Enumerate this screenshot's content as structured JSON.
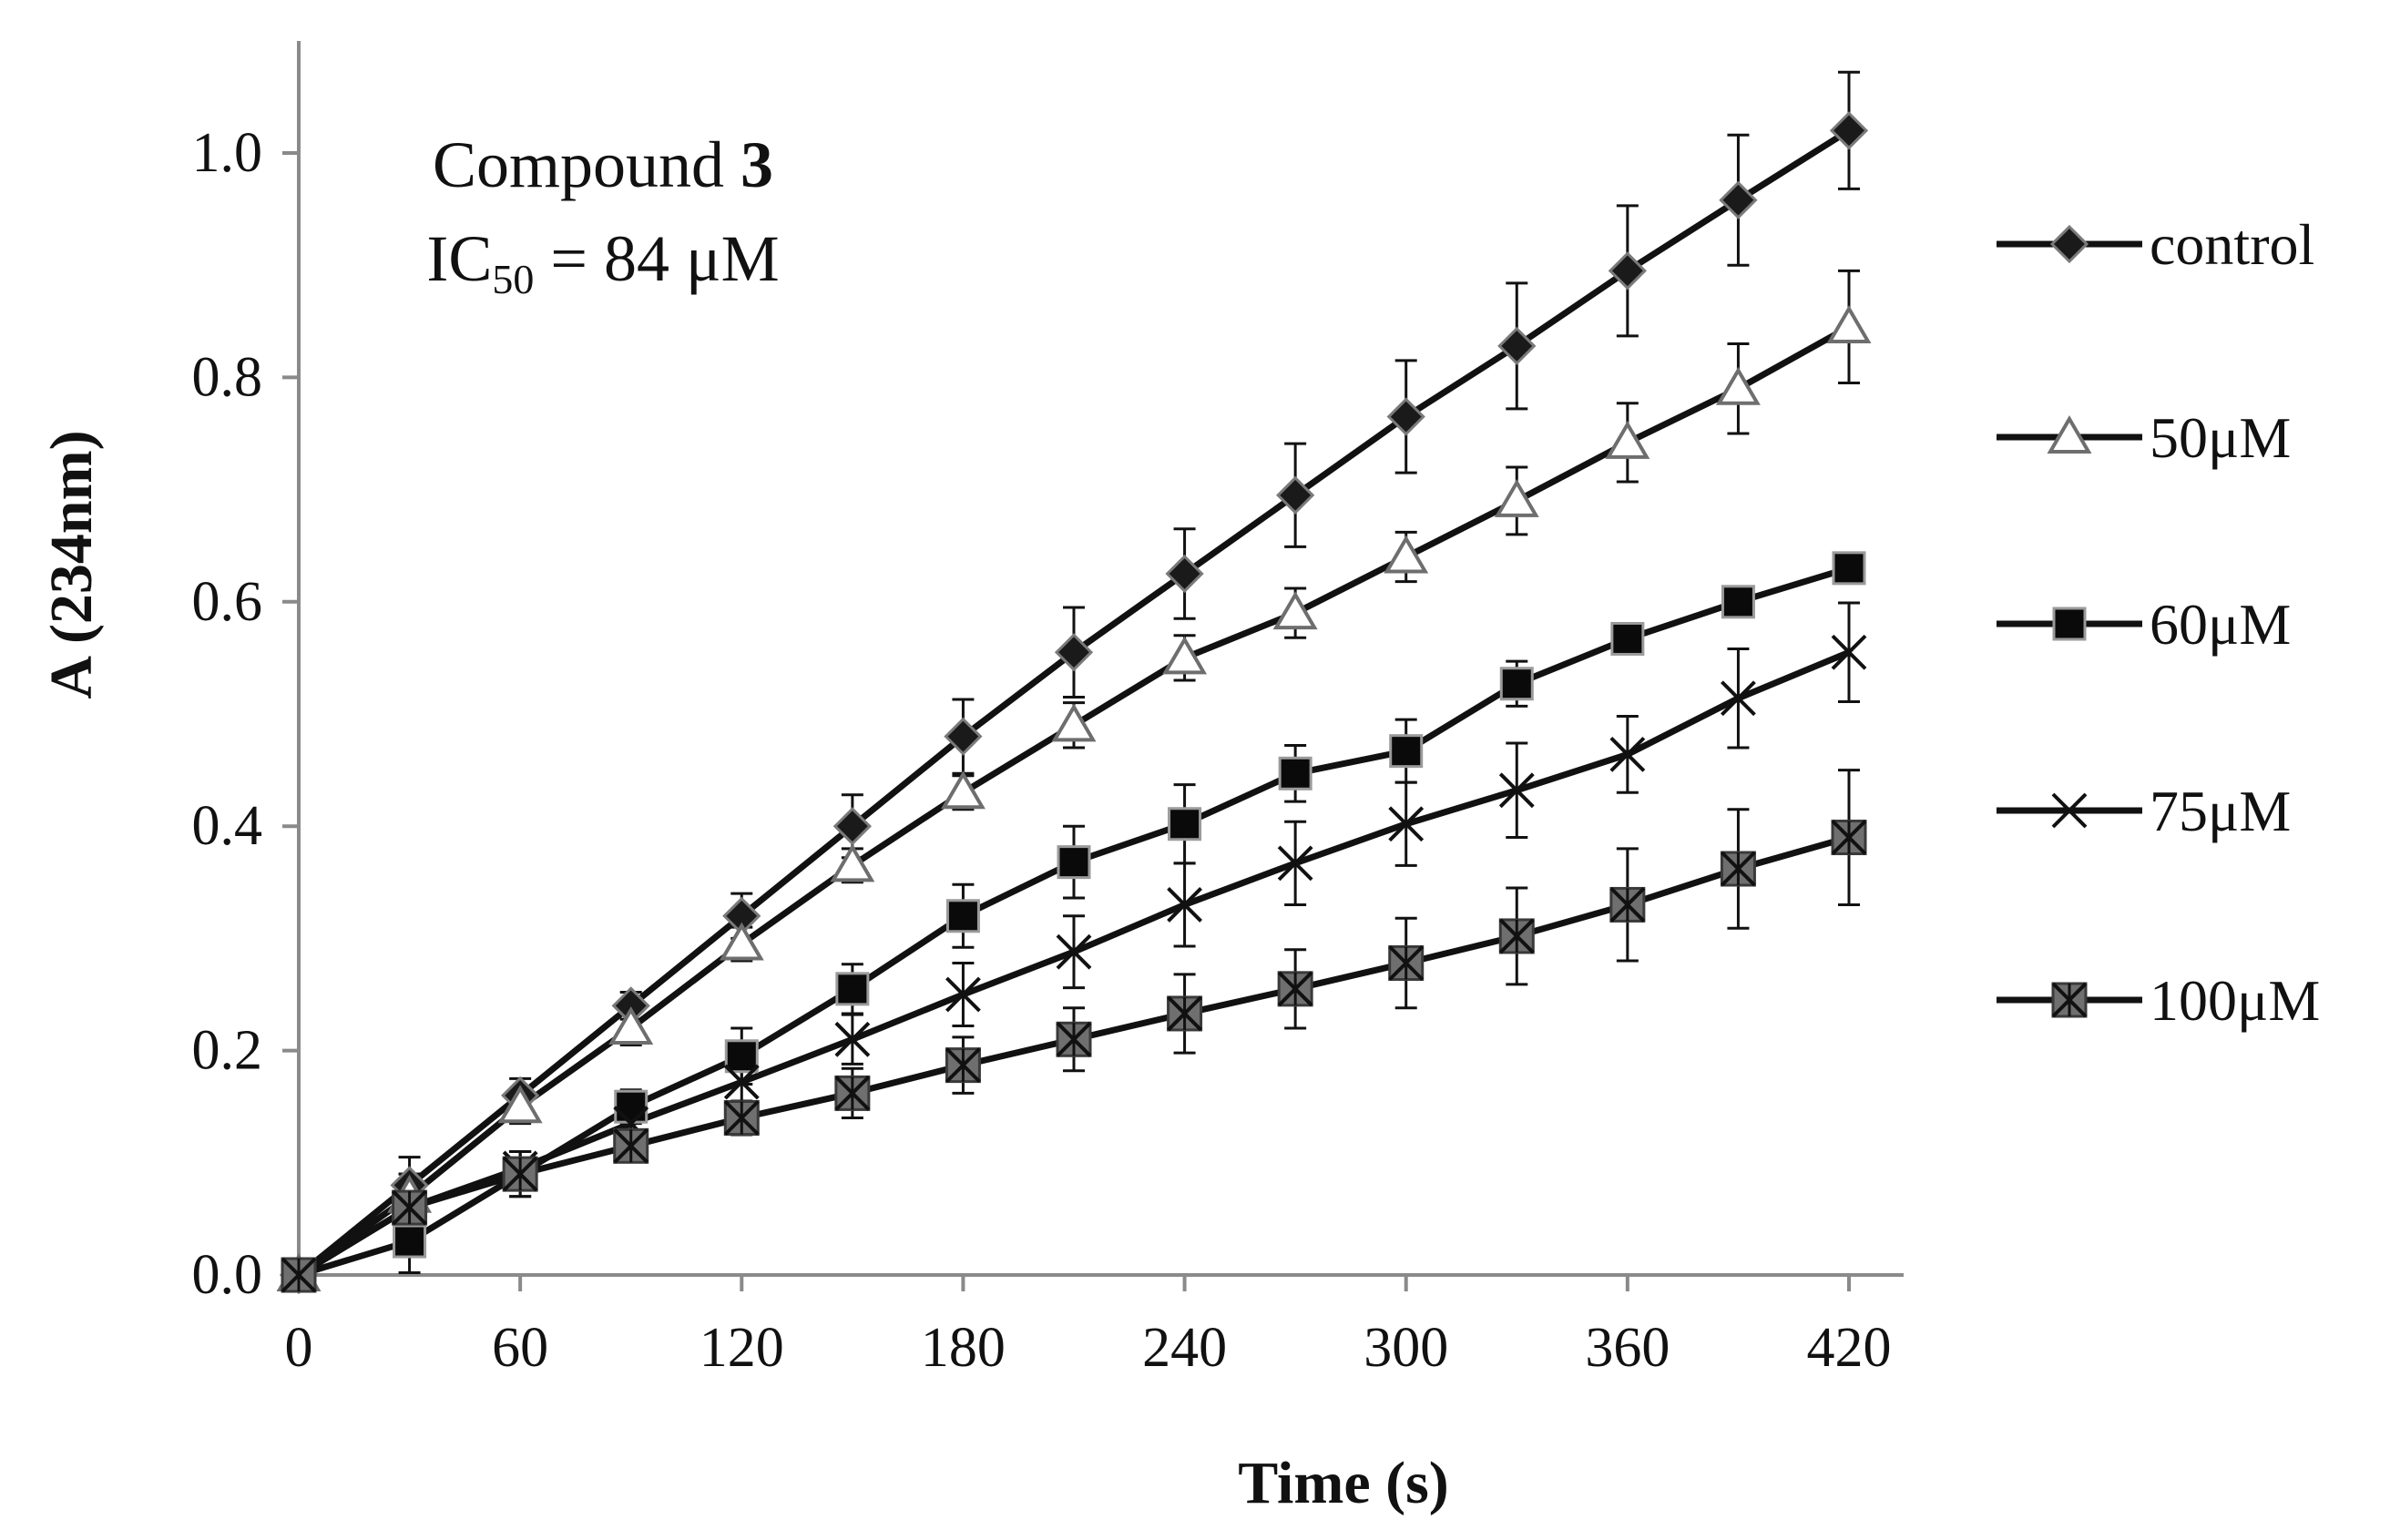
{
  "chart_data": {
    "type": "line",
    "xlabel": "Time (s)",
    "ylabel": "A (234nm)",
    "xlim": [
      0,
      420
    ],
    "ylim": [
      0,
      1.08
    ],
    "xticks": [
      0,
      60,
      120,
      180,
      240,
      300,
      360,
      420
    ],
    "xtick_labels": [
      "0",
      "60",
      "120",
      "180",
      "240",
      "300",
      "360",
      "420"
    ],
    "yticks": [
      0.0,
      0.2,
      0.4,
      0.6,
      0.8,
      1.0
    ],
    "ytick_labels": [
      "0.0",
      "0.2",
      "0.4",
      "0.6",
      "0.8",
      "1.0"
    ],
    "grid": false,
    "legend_position": "right",
    "annotation": {
      "line1_prefix": "Compound ",
      "line1_bold": "3",
      "line2_prefix": "IC",
      "line2_sub": "50",
      "line2_suffix": " = 84 μM"
    },
    "x": [
      0,
      30,
      60,
      90,
      120,
      150,
      180,
      210,
      240,
      270,
      300,
      330,
      360,
      390,
      420
    ],
    "series": [
      {
        "name": "control",
        "marker": "diamond",
        "values": [
          0.0,
          0.08,
          0.16,
          0.24,
          0.32,
          0.4,
          0.48,
          0.555,
          0.625,
          0.695,
          0.765,
          0.828,
          0.895,
          0.958,
          1.02
        ],
        "errors": [
          0,
          0.025,
          0.015,
          0.012,
          0.02,
          0.028,
          0.033,
          0.04,
          0.04,
          0.046,
          0.05,
          0.056,
          0.058,
          0.058,
          0.052
        ]
      },
      {
        "name": "50μM",
        "marker": "triangle-open",
        "values": [
          0.0,
          0.07,
          0.15,
          0.22,
          0.295,
          0.365,
          0.43,
          0.49,
          0.55,
          0.59,
          0.64,
          0.69,
          0.742,
          0.79,
          0.845
        ],
        "errors": [
          0,
          0.02,
          0.015,
          0.015,
          0.015,
          0.015,
          0.015,
          0.02,
          0.02,
          0.022,
          0.022,
          0.03,
          0.035,
          0.04,
          0.05
        ]
      },
      {
        "name": "60μM",
        "marker": "square-filled",
        "values": [
          0.0,
          0.03,
          0.09,
          0.15,
          0.195,
          0.255,
          0.32,
          0.368,
          0.402,
          0.447,
          0.467,
          0.527,
          0.567,
          0.6,
          0.63
        ],
        "errors": [
          0,
          0.028,
          0.02,
          0.015,
          0.025,
          0.022,
          0.028,
          0.032,
          0.035,
          0.025,
          0.028,
          0.02,
          0.012,
          0.01,
          0.01
        ]
      },
      {
        "name": "75μM",
        "marker": "cross",
        "values": [
          0.0,
          0.06,
          0.095,
          0.135,
          0.172,
          0.21,
          0.25,
          0.288,
          0.33,
          0.367,
          0.402,
          0.432,
          0.464,
          0.514,
          0.555
        ],
        "errors": [
          0,
          0.02,
          0.015,
          0.015,
          0.02,
          0.022,
          0.028,
          0.032,
          0.037,
          0.037,
          0.037,
          0.042,
          0.034,
          0.044,
          0.044
        ]
      },
      {
        "name": "100μM",
        "marker": "square-star",
        "values": [
          0.0,
          0.06,
          0.09,
          0.115,
          0.14,
          0.162,
          0.187,
          0.21,
          0.233,
          0.255,
          0.278,
          0.302,
          0.33,
          0.362,
          0.39
        ],
        "errors": [
          0,
          0.03,
          0.02,
          0.012,
          0.015,
          0.022,
          0.025,
          0.028,
          0.035,
          0.035,
          0.04,
          0.043,
          0.05,
          0.053,
          0.06
        ]
      }
    ]
  }
}
